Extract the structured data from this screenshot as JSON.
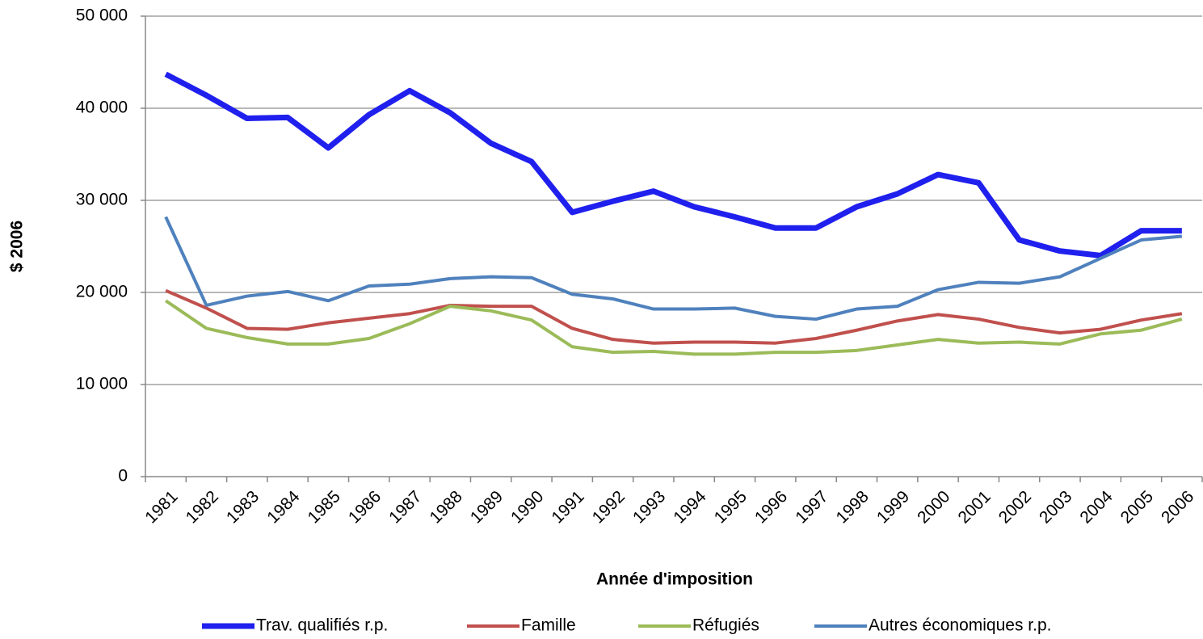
{
  "chart_data": {
    "type": "line",
    "xlabel": "Année d'imposition",
    "ylabel": "$ 2006",
    "categories": [
      "1981",
      "1982",
      "1983",
      "1984",
      "1985",
      "1986",
      "1987",
      "1988",
      "1989",
      "1990",
      "1991",
      "1992",
      "1993",
      "1994",
      "1995",
      "1996",
      "1997",
      "1998",
      "1999",
      "2000",
      "2001",
      "2002",
      "2003",
      "2004",
      "2005",
      "2006"
    ],
    "series": [
      {
        "name": "Trav. qualifiés r.p.",
        "color": "#2020ee",
        "values": [
          43700,
          41400,
          38900,
          39000,
          35700,
          39300,
          41900,
          39500,
          36200,
          34200,
          28700,
          29900,
          31000,
          29300,
          28200,
          27000,
          27000,
          29300,
          30700,
          32800,
          31900,
          25700,
          24500,
          24000,
          26700,
          26700
        ]
      },
      {
        "name": "Famille",
        "color": "#c0504d",
        "values": [
          20200,
          18300,
          16100,
          16000,
          16700,
          17200,
          17700,
          18600,
          18500,
          18500,
          16100,
          14900,
          14500,
          14600,
          14600,
          14500,
          15000,
          15900,
          16900,
          17600,
          17100,
          16200,
          15600,
          16000,
          17000,
          17700
        ]
      },
      {
        "name": "Réfugiés",
        "color": "#9bbb59",
        "values": [
          19100,
          16100,
          15100,
          14400,
          14400,
          15000,
          16600,
          18500,
          18000,
          17000,
          14100,
          13500,
          13600,
          13300,
          13300,
          13500,
          13500,
          13700,
          14300,
          14900,
          14500,
          14600,
          14400,
          15500,
          15900,
          17100
        ]
      },
      {
        "name": "Autres économiques r.p.",
        "color": "#4f81bd",
        "values": [
          28200,
          18600,
          19600,
          20100,
          19100,
          20700,
          20900,
          21500,
          21700,
          21600,
          19800,
          19300,
          18200,
          18200,
          18300,
          17400,
          17100,
          18200,
          18500,
          20300,
          21100,
          21000,
          21700,
          23700,
          25700,
          26100
        ]
      }
    ],
    "ylim": [
      0,
      50000
    ],
    "yticks": [
      0,
      {
        "value": 10000,
        "label": "10 000"
      },
      {
        "value": 20000,
        "label": "20 000"
      },
      {
        "value": 30000,
        "label": "30 000"
      },
      {
        "value": 40000,
        "label": "40 000"
      },
      {
        "value": 50000,
        "label": "50 000"
      }
    ],
    "grid": true,
    "legend": "bottom"
  }
}
